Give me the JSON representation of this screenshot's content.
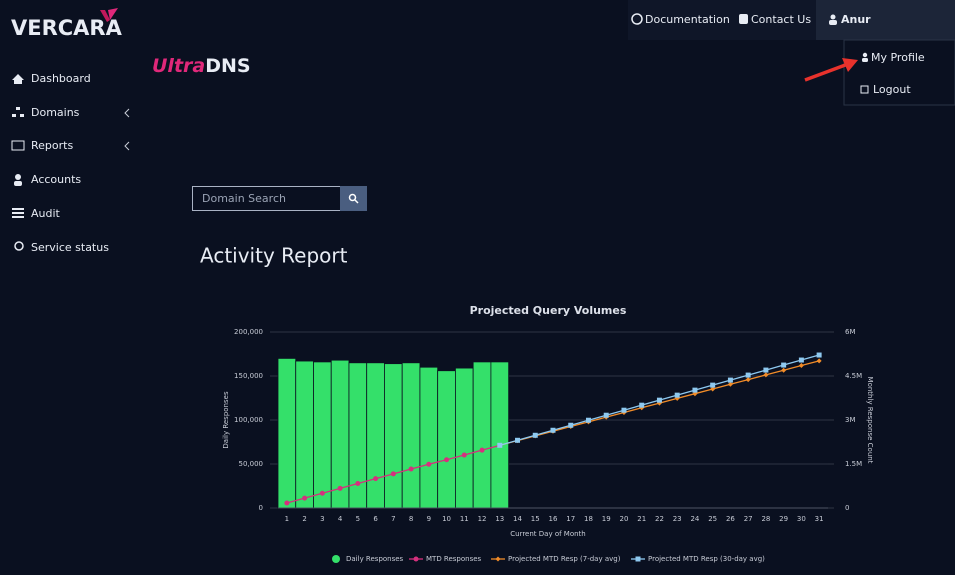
{
  "logo": "VERCARA",
  "product": {
    "prefix": "Ultra",
    "suffix": "DNS"
  },
  "sidebar": [
    "Dashboard",
    "Domains",
    "Reports",
    "Accounts",
    "Audit",
    "Service status"
  ],
  "topbar": {
    "links": [
      "Documentation",
      "Contact Us"
    ],
    "user": "Anur",
    "menu": [
      "My Profile",
      "Logout"
    ]
  },
  "search": {
    "placeholder": "Domain Search"
  },
  "heading": "Activity Report",
  "chart_data": {
    "type": "combo",
    "title": "Projected Query Volumes",
    "x_label": "Current Day of Month",
    "y_label": "Daily Responses",
    "y2_label": "Monthly Response Count",
    "categories": [
      1,
      2,
      3,
      4,
      5,
      6,
      7,
      8,
      9,
      10,
      11,
      12,
      13,
      14,
      15,
      16,
      17,
      18,
      19,
      20,
      21,
      22,
      23,
      24,
      25,
      26,
      27,
      28,
      29,
      30,
      31
    ],
    "ylim": [
      0,
      200000
    ],
    "yticks": [
      0,
      {
        "value": 50000,
        "label": "50,000"
      },
      {
        "value": 100000,
        "label": "100,000"
      },
      {
        "value": 150000,
        "label": "150,000"
      },
      {
        "value": 200000,
        "label": "200,000"
      }
    ],
    "y2lim": [
      0,
      6000000
    ],
    "y2ticks": [
      0,
      {
        "value": 1500000,
        "label": "1.5M"
      },
      {
        "value": 3000000,
        "label": "3M"
      },
      {
        "value": 4500000,
        "label": "4.5M"
      },
      {
        "value": 6000000,
        "label": "6M"
      }
    ],
    "grid": true,
    "legend": "bottom",
    "series": [
      {
        "name": "Daily Responses",
        "type": "bar",
        "color": "#34e06a",
        "marker": "circle",
        "values": [
          170000,
          167000,
          166000,
          168000,
          165000,
          165000,
          164000,
          165000,
          160000,
          156000,
          159000,
          166000,
          166000,
          null,
          null,
          null,
          null,
          null,
          null,
          null,
          null,
          null,
          null,
          null,
          null,
          null,
          null,
          null,
          null,
          null,
          null
        ]
      },
      {
        "name": "MTD Responses",
        "type": "line",
        "axis": "y2",
        "color": "#d6307e",
        "marker": "circle",
        "values": [
          170000,
          337000,
          503000,
          671000,
          836000,
          1001000,
          1165000,
          1330000,
          1490000,
          1646000,
          1805000,
          1971000,
          2137000,
          null,
          null,
          null,
          null,
          null,
          null,
          null,
          null,
          null,
          null,
          null,
          null,
          null,
          null,
          null,
          null,
          null,
          null
        ]
      },
      {
        "name": "Projected MTD Resp (7-day avg)",
        "type": "line",
        "axis": "y2",
        "color": "#f28c28",
        "marker": "diamond",
        "values": [
          null,
          null,
          null,
          null,
          null,
          null,
          null,
          null,
          null,
          null,
          null,
          null,
          2137000,
          2297000,
          2457000,
          2617000,
          2777000,
          2937000,
          3097000,
          3257000,
          3417000,
          3577000,
          3737000,
          3897000,
          4057000,
          4217000,
          4377000,
          4537000,
          4697000,
          4857000,
          5017000
        ]
      },
      {
        "name": "Projected MTD Resp (30-day avg)",
        "type": "line",
        "axis": "y2",
        "color": "#8ec9f0",
        "marker": "square",
        "values": [
          null,
          null,
          null,
          null,
          null,
          null,
          null,
          null,
          null,
          null,
          null,
          null,
          2137000,
          2308000,
          2479000,
          2650000,
          2821000,
          2992000,
          3163000,
          3334000,
          3505000,
          3676000,
          3847000,
          4018000,
          4189000,
          4360000,
          4531000,
          4702000,
          4873000,
          5044000,
          5215000
        ]
      }
    ]
  }
}
